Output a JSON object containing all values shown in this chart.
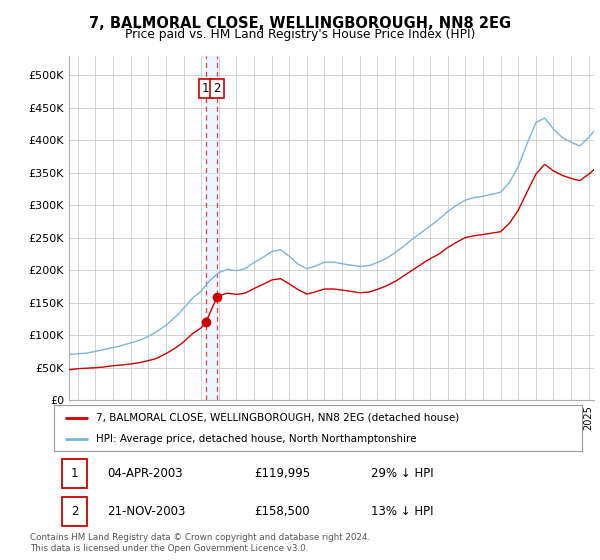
{
  "title1": "7, BALMORAL CLOSE, WELLINGBOROUGH, NN8 2EG",
  "title2": "Price paid vs. HM Land Registry's House Price Index (HPI)",
  "ylabel_ticks": [
    "£0",
    "£50K",
    "£100K",
    "£150K",
    "£200K",
    "£250K",
    "£300K",
    "£350K",
    "£400K",
    "£450K",
    "£500K"
  ],
  "ytick_values": [
    0,
    50000,
    100000,
    150000,
    200000,
    250000,
    300000,
    350000,
    400000,
    450000,
    500000
  ],
  "ylim": [
    0,
    530000
  ],
  "xlim_start": 1995.5,
  "xlim_end": 2025.3,
  "hpi_color": "#7ab5d8",
  "price_color": "#cc0000",
  "vline_color": "#cc0000",
  "transaction1": {
    "date": "04-APR-2003",
    "price": 119995,
    "pct": "29% ↓ HPI",
    "label": "1",
    "x": 2003.27
  },
  "transaction2": {
    "date": "21-NOV-2003",
    "price": 158500,
    "pct": "13% ↓ HPI",
    "label": "2",
    "x": 2003.9
  },
  "legend_line1": "7, BALMORAL CLOSE, WELLINGBOROUGH, NN8 2EG (detached house)",
  "legend_line2": "HPI: Average price, detached house, North Northamptonshire",
  "footnote": "Contains HM Land Registry data © Crown copyright and database right 2024.\nThis data is licensed under the Open Government Licence v3.0.",
  "bg_color": "#ffffff",
  "grid_color": "#cccccc"
}
